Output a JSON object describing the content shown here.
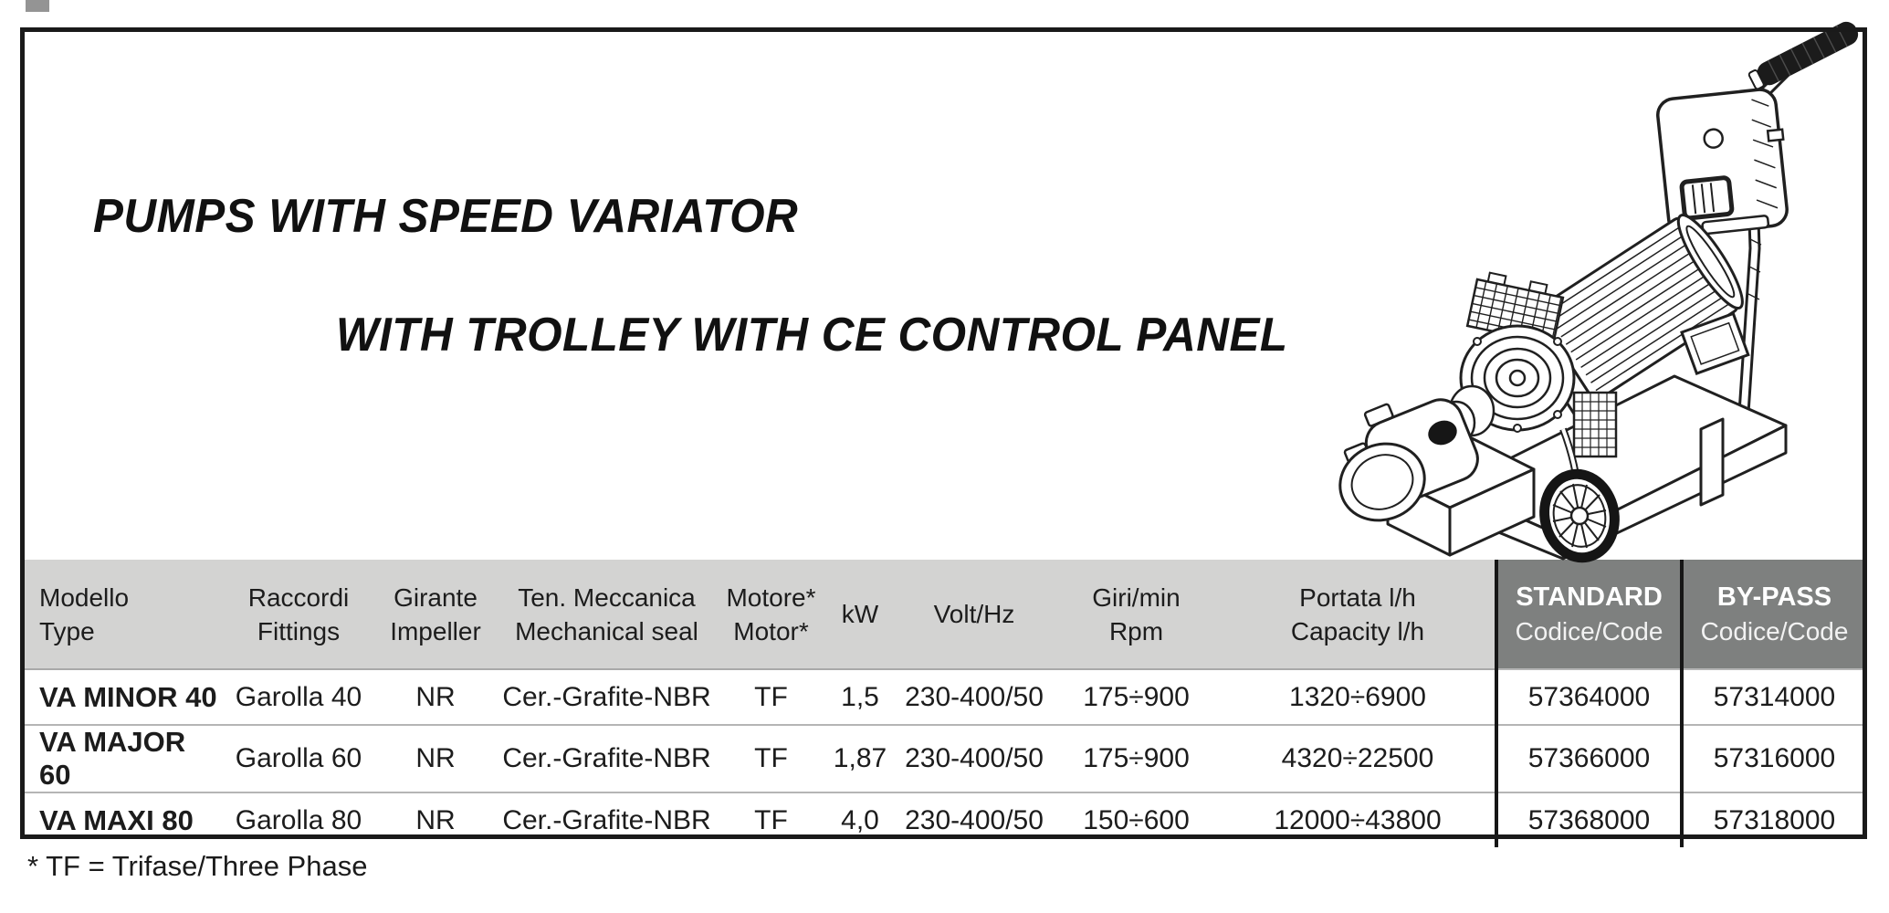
{
  "document": {
    "title_line1": "PUMPS WITH SPEED VARIATOR",
    "title_line2": "WITH TROLLEY WITH CE CONTROL PANEL",
    "footnote": "* TF = Trifase/Three Phase"
  },
  "illustration": {
    "description": "Line drawing of a pump with speed variator and electric motor mounted on a trolley with handle and CE control panel, with spoked wheel"
  },
  "colors": {
    "frame_black": "#1a1a1a",
    "header_light_bg": "#d3d3d2",
    "header_dark_bg": "#7e807f",
    "header_dark_text": "#ffffff",
    "row_separator": "#b5b5b5",
    "text": "#1c1c1c"
  },
  "table": {
    "columns": [
      {
        "id": "modello",
        "label_line1": "Modello",
        "label_line2": "Type"
      },
      {
        "id": "raccordi",
        "label_line1": "Raccordi",
        "label_line2": "Fittings"
      },
      {
        "id": "girante",
        "label_line1": "Girante",
        "label_line2": "Impeller"
      },
      {
        "id": "tenuta",
        "label_line1": "Ten. Meccanica",
        "label_line2": "Mechanical seal"
      },
      {
        "id": "motore",
        "label_line1": "Motore*",
        "label_line2": "Motor*"
      },
      {
        "id": "kw",
        "label_line1": "kW",
        "label_line2": ""
      },
      {
        "id": "volt",
        "label_line1": "Volt/Hz",
        "label_line2": ""
      },
      {
        "id": "giri",
        "label_line1": "Giri/min",
        "label_line2": "Rpm"
      },
      {
        "id": "portata",
        "label_line1": "Portata l/h",
        "label_line2": "Capacity l/h"
      },
      {
        "id": "standard",
        "label_line1": "STANDARD",
        "label_line2": "Codice/Code",
        "dark": true
      },
      {
        "id": "bypass",
        "label_line1": "BY-PASS",
        "label_line2": "Codice/Code",
        "dark": true
      }
    ],
    "rows": [
      {
        "modello": "VA MINOR 40",
        "raccordi": "Garolla 40",
        "girante": "NR",
        "tenuta": "Cer.-Grafite-NBR",
        "motore": "TF",
        "kw": "1,5",
        "volt": "230-400/50",
        "giri": "175÷900",
        "portata": "1320÷6900",
        "standard": "57364000",
        "bypass": "57314000"
      },
      {
        "modello": "VA MAJOR 60",
        "raccordi": "Garolla 60",
        "girante": "NR",
        "tenuta": "Cer.-Grafite-NBR",
        "motore": "TF",
        "kw": "1,87",
        "volt": "230-400/50",
        "giri": "175÷900",
        "portata": "4320÷22500",
        "standard": "57366000",
        "bypass": "57316000"
      },
      {
        "modello": "VA MAXI 80",
        "raccordi": "Garolla 80",
        "girante": "NR",
        "tenuta": "Cer.-Grafite-NBR",
        "motore": "TF",
        "kw": "4,0",
        "volt": "230-400/50",
        "giri": "150÷600",
        "portata": "12000÷43800",
        "standard": "57368000",
        "bypass": "57318000"
      }
    ]
  }
}
